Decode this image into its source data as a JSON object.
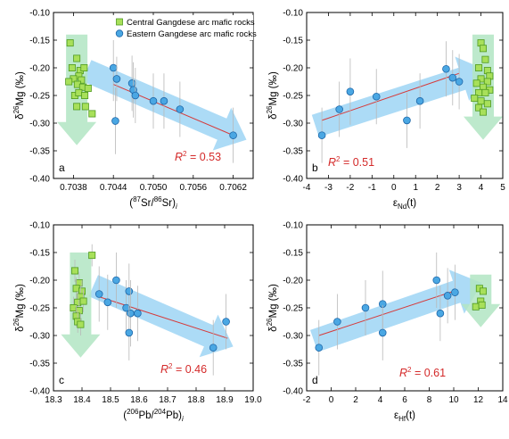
{
  "colors": {
    "square_fill": "#a8e05a",
    "square_stroke": "#4f9a1f",
    "circle_fill": "#4aa7e3",
    "circle_stroke": "#1d66a8",
    "arrow_blue": "#9ed5f4",
    "arrow_green": "#b2e5c3",
    "fit_line": "#d63a3a",
    "r2_text": "#d42a2a",
    "error_bar": "#b8b8b8"
  },
  "legend": {
    "central_label": "Central Gangdese arc mafic rocks",
    "eastern_label": "Eastern Gangdese arc mafic rocks"
  },
  "chart_data": [
    {
      "panel": "a",
      "type": "scatter",
      "xlabel_parts": [
        "(",
        "87",
        "Sr/",
        "86",
        "Sr)",
        "i"
      ],
      "ylabel": "δ26Mg (‰)",
      "xlim": [
        0.7035,
        0.7065
      ],
      "ylim": [
        -0.4,
        -0.1
      ],
      "xticks": [
        0.7038,
        0.7044,
        0.705,
        0.7056,
        0.7062
      ],
      "xticklabels": [
        "0.7038",
        "0.7044",
        "0.7050",
        "0.7056",
        "0.7062"
      ],
      "yticks": [
        -0.4,
        -0.35,
        -0.3,
        -0.25,
        -0.2,
        -0.15,
        -0.1
      ],
      "yticklabels": [
        "-0.40",
        "-0.35",
        "-0.30",
        "-0.25",
        "-0.20",
        "-0.15",
        "-0.10"
      ],
      "r2_label": "R",
      "r2_value": " = 0.53",
      "show_legend": true,
      "fit_line": {
        "x": [
          0.7044,
          0.7062
        ],
        "y": [
          -0.23,
          -0.322
        ]
      },
      "arrow_blue": {
        "from": [
          0.704,
          -0.205
        ],
        "to": [
          0.7064,
          -0.33
        ]
      },
      "arrow_green": {
        "cx": 0.70385,
        "top": -0.14,
        "bottom": -0.34
      },
      "series": [
        {
          "name": "Central Gangdese arc mafic rocks",
          "marker": "square",
          "x": [
            0.70375,
            0.70385,
            0.70378,
            0.7039,
            0.70388,
            0.70396,
            0.7038,
            0.70392,
            0.70373,
            0.70386,
            0.70394,
            0.70402,
            0.70382,
            0.70388,
            0.70397,
            0.70385,
            0.70398,
            0.70408
          ],
          "y": [
            -0.155,
            -0.183,
            -0.2,
            -0.205,
            -0.215,
            -0.2,
            -0.22,
            -0.222,
            -0.225,
            -0.23,
            -0.235,
            -0.237,
            -0.25,
            -0.245,
            -0.25,
            -0.27,
            -0.27,
            -0.283
          ]
        },
        {
          "name": "Eastern Gangdese arc mafic rocks",
          "marker": "circle",
          "x": [
            0.7044,
            0.70445,
            0.70468,
            0.7047,
            0.70473,
            0.705,
            0.70516,
            0.7054,
            0.70443,
            0.7062
          ],
          "y": [
            -0.2,
            -0.22,
            -0.228,
            -0.24,
            -0.25,
            -0.26,
            -0.26,
            -0.275,
            -0.296,
            -0.322
          ],
          "err": [
            0.06,
            0.04,
            0.05,
            0.05,
            0.05,
            0.05,
            0.05,
            0.05,
            0.06,
            0.05
          ]
        }
      ]
    },
    {
      "panel": "b",
      "type": "scatter",
      "xlabel_parts": [
        "ε",
        "Nd",
        "(t)"
      ],
      "ylabel": "δ26Mg (‰)",
      "xlim": [
        -4,
        5
      ],
      "ylim": [
        -0.4,
        -0.1
      ],
      "xticks": [
        -4,
        -3,
        -2,
        -1,
        0,
        1,
        2,
        3,
        4,
        5
      ],
      "xticklabels": [
        "-4",
        "-3",
        "-2",
        "-1",
        "0",
        "1",
        "2",
        "3",
        "4",
        "5"
      ],
      "yticks": [
        -0.4,
        -0.35,
        -0.3,
        -0.25,
        -0.2,
        -0.15,
        -0.1
      ],
      "yticklabels": [
        "-0.40",
        "-0.35",
        "-0.30",
        "-0.25",
        "-0.20",
        "-0.15",
        "-0.10"
      ],
      "r2_label": "R",
      "r2_value": " = 0.51",
      "show_legend": false,
      "fit_line": {
        "x": [
          -3.3,
          3.0
        ],
        "y": [
          -0.295,
          -0.21
        ]
      },
      "arrow_blue": {
        "from": [
          -3.6,
          -0.305
        ],
        "to": [
          4.3,
          -0.205
        ]
      },
      "arrow_green": {
        "cx": 4.1,
        "top": -0.14,
        "bottom": -0.33
      },
      "series": [
        {
          "name": "Central Gangdese arc mafic rocks",
          "marker": "square",
          "x": [
            4.0,
            4.1,
            4.2,
            3.9,
            4.3,
            4.4,
            4.0,
            4.3,
            3.8,
            4.1,
            4.4,
            3.9,
            4.2,
            3.7,
            4.0,
            4.3,
            3.9,
            4.1
          ],
          "y": [
            -0.155,
            -0.165,
            -0.185,
            -0.2,
            -0.205,
            -0.215,
            -0.22,
            -0.225,
            -0.228,
            -0.235,
            -0.24,
            -0.245,
            -0.245,
            -0.255,
            -0.26,
            -0.265,
            -0.272,
            -0.28
          ]
        },
        {
          "name": "Eastern Gangdese arc mafic rocks",
          "marker": "circle",
          "x": [
            -3.3,
            -2.5,
            -2.0,
            -0.8,
            0.6,
            1.2,
            2.4,
            2.7,
            3.0
          ],
          "y": [
            -0.322,
            -0.275,
            -0.243,
            -0.252,
            -0.295,
            -0.26,
            -0.202,
            -0.218,
            -0.225
          ],
          "err": [
            0.05,
            0.05,
            0.06,
            0.05,
            0.05,
            0.05,
            0.05,
            0.05,
            0.05
          ]
        }
      ]
    },
    {
      "panel": "c",
      "type": "scatter",
      "xlabel_parts": [
        "(",
        "206",
        "Pb/",
        "204",
        "Pb)",
        "i"
      ],
      "ylabel": "δ26Mg (‰)",
      "xlim": [
        18.3,
        19.0
      ],
      "ylim": [
        -0.4,
        -0.1
      ],
      "xticks": [
        18.3,
        18.4,
        18.5,
        18.6,
        18.7,
        18.8,
        18.9,
        19.0
      ],
      "xticklabels": [
        "18.3",
        "18.4",
        "18.5",
        "18.6",
        "18.7",
        "18.8",
        "18.9",
        "19.0"
      ],
      "yticks": [
        -0.4,
        -0.35,
        -0.3,
        -0.25,
        -0.2,
        -0.15,
        -0.1
      ],
      "yticklabels": [
        "-0.40",
        "-0.35",
        "-0.30",
        "-0.25",
        "-0.20",
        "-0.15",
        "-0.10"
      ],
      "r2_label": "R",
      "r2_value": " = 0.46",
      "show_legend": false,
      "fit_line": {
        "x": [
          18.46,
          18.91
        ],
        "y": [
          -0.23,
          -0.305
        ]
      },
      "arrow_blue": {
        "from": [
          18.44,
          -0.21
        ],
        "to": [
          18.93,
          -0.32
        ]
      },
      "arrow_green": {
        "cx": 18.395,
        "top": -0.15,
        "bottom": -0.34
      },
      "series": [
        {
          "name": "Central Gangdese arc mafic rocks",
          "marker": "square",
          "x": [
            18.435,
            18.375,
            18.39,
            18.38,
            18.4,
            18.395,
            18.385,
            18.405,
            18.37,
            18.39,
            18.38,
            18.385,
            18.395
          ],
          "y": [
            -0.155,
            -0.183,
            -0.205,
            -0.215,
            -0.22,
            -0.23,
            -0.24,
            -0.238,
            -0.25,
            -0.255,
            -0.265,
            -0.275,
            -0.28
          ],
          "err": [
            0.02,
            0.02,
            0.02,
            0.02,
            0.02,
            0.02,
            0.02,
            0.02,
            0.02,
            0.02,
            0.02,
            0.02,
            0.02
          ]
        },
        {
          "name": "Eastern Gangdese arc mafic rocks",
          "marker": "circle",
          "x": [
            18.46,
            18.49,
            18.52,
            18.555,
            18.565,
            18.57,
            18.595,
            18.565,
            18.86,
            18.905
          ],
          "y": [
            -0.225,
            -0.24,
            -0.2,
            -0.25,
            -0.22,
            -0.26,
            -0.26,
            -0.295,
            -0.322,
            -0.275
          ],
          "err": [
            0.05,
            0.05,
            0.05,
            0.05,
            0.05,
            0.06,
            0.05,
            0.05,
            0.05,
            0.05
          ]
        }
      ]
    },
    {
      "panel": "d",
      "type": "scatter",
      "xlabel_parts": [
        "ε",
        "Hf",
        "(t)"
      ],
      "ylabel": "δ26Mg (‰)",
      "xlim": [
        -2,
        14
      ],
      "ylim": [
        -0.4,
        -0.1
      ],
      "xticks": [
        -2,
        0,
        2,
        4,
        6,
        8,
        10,
        12,
        14
      ],
      "xticklabels": [
        "-2",
        "0",
        "2",
        "4",
        "6",
        "8",
        "10",
        "12",
        "14"
      ],
      "yticks": [
        -0.4,
        -0.35,
        -0.3,
        -0.25,
        -0.2,
        -0.15,
        -0.1
      ],
      "yticklabels": [
        "-0.40",
        "-0.35",
        "-0.30",
        "-0.25",
        "-0.20",
        "-0.15",
        "-0.10"
      ],
      "r2_label": "R",
      "r2_value": " = 0.61",
      "show_legend": false,
      "fit_line": {
        "x": [
          -1.0,
          10.0
        ],
        "y": [
          -0.3,
          -0.22
        ]
      },
      "arrow_blue": {
        "from": [
          -1.4,
          -0.31
        ],
        "to": [
          12.3,
          -0.205
        ]
      },
      "arrow_green": {
        "cx": 12.2,
        "top": -0.19,
        "bottom": -0.285
      },
      "series": [
        {
          "name": "Central Gangdese arc mafic rocks",
          "marker": "square",
          "x": [
            12.1,
            12.4,
            12.2,
            11.8,
            12.3
          ],
          "y": [
            -0.215,
            -0.22,
            -0.238,
            -0.248,
            -0.245
          ]
        },
        {
          "name": "Eastern Gangdese arc mafic rocks",
          "marker": "circle",
          "x": [
            -1.0,
            0.5,
            2.8,
            4.2,
            4.2,
            8.6,
            8.9,
            9.5,
            10.1
          ],
          "y": [
            -0.322,
            -0.275,
            -0.25,
            -0.243,
            -0.295,
            -0.2,
            -0.26,
            -0.228,
            -0.222
          ],
          "err": [
            0.05,
            0.05,
            0.05,
            0.06,
            0.05,
            0.05,
            0.05,
            0.05,
            0.05
          ]
        }
      ]
    }
  ]
}
